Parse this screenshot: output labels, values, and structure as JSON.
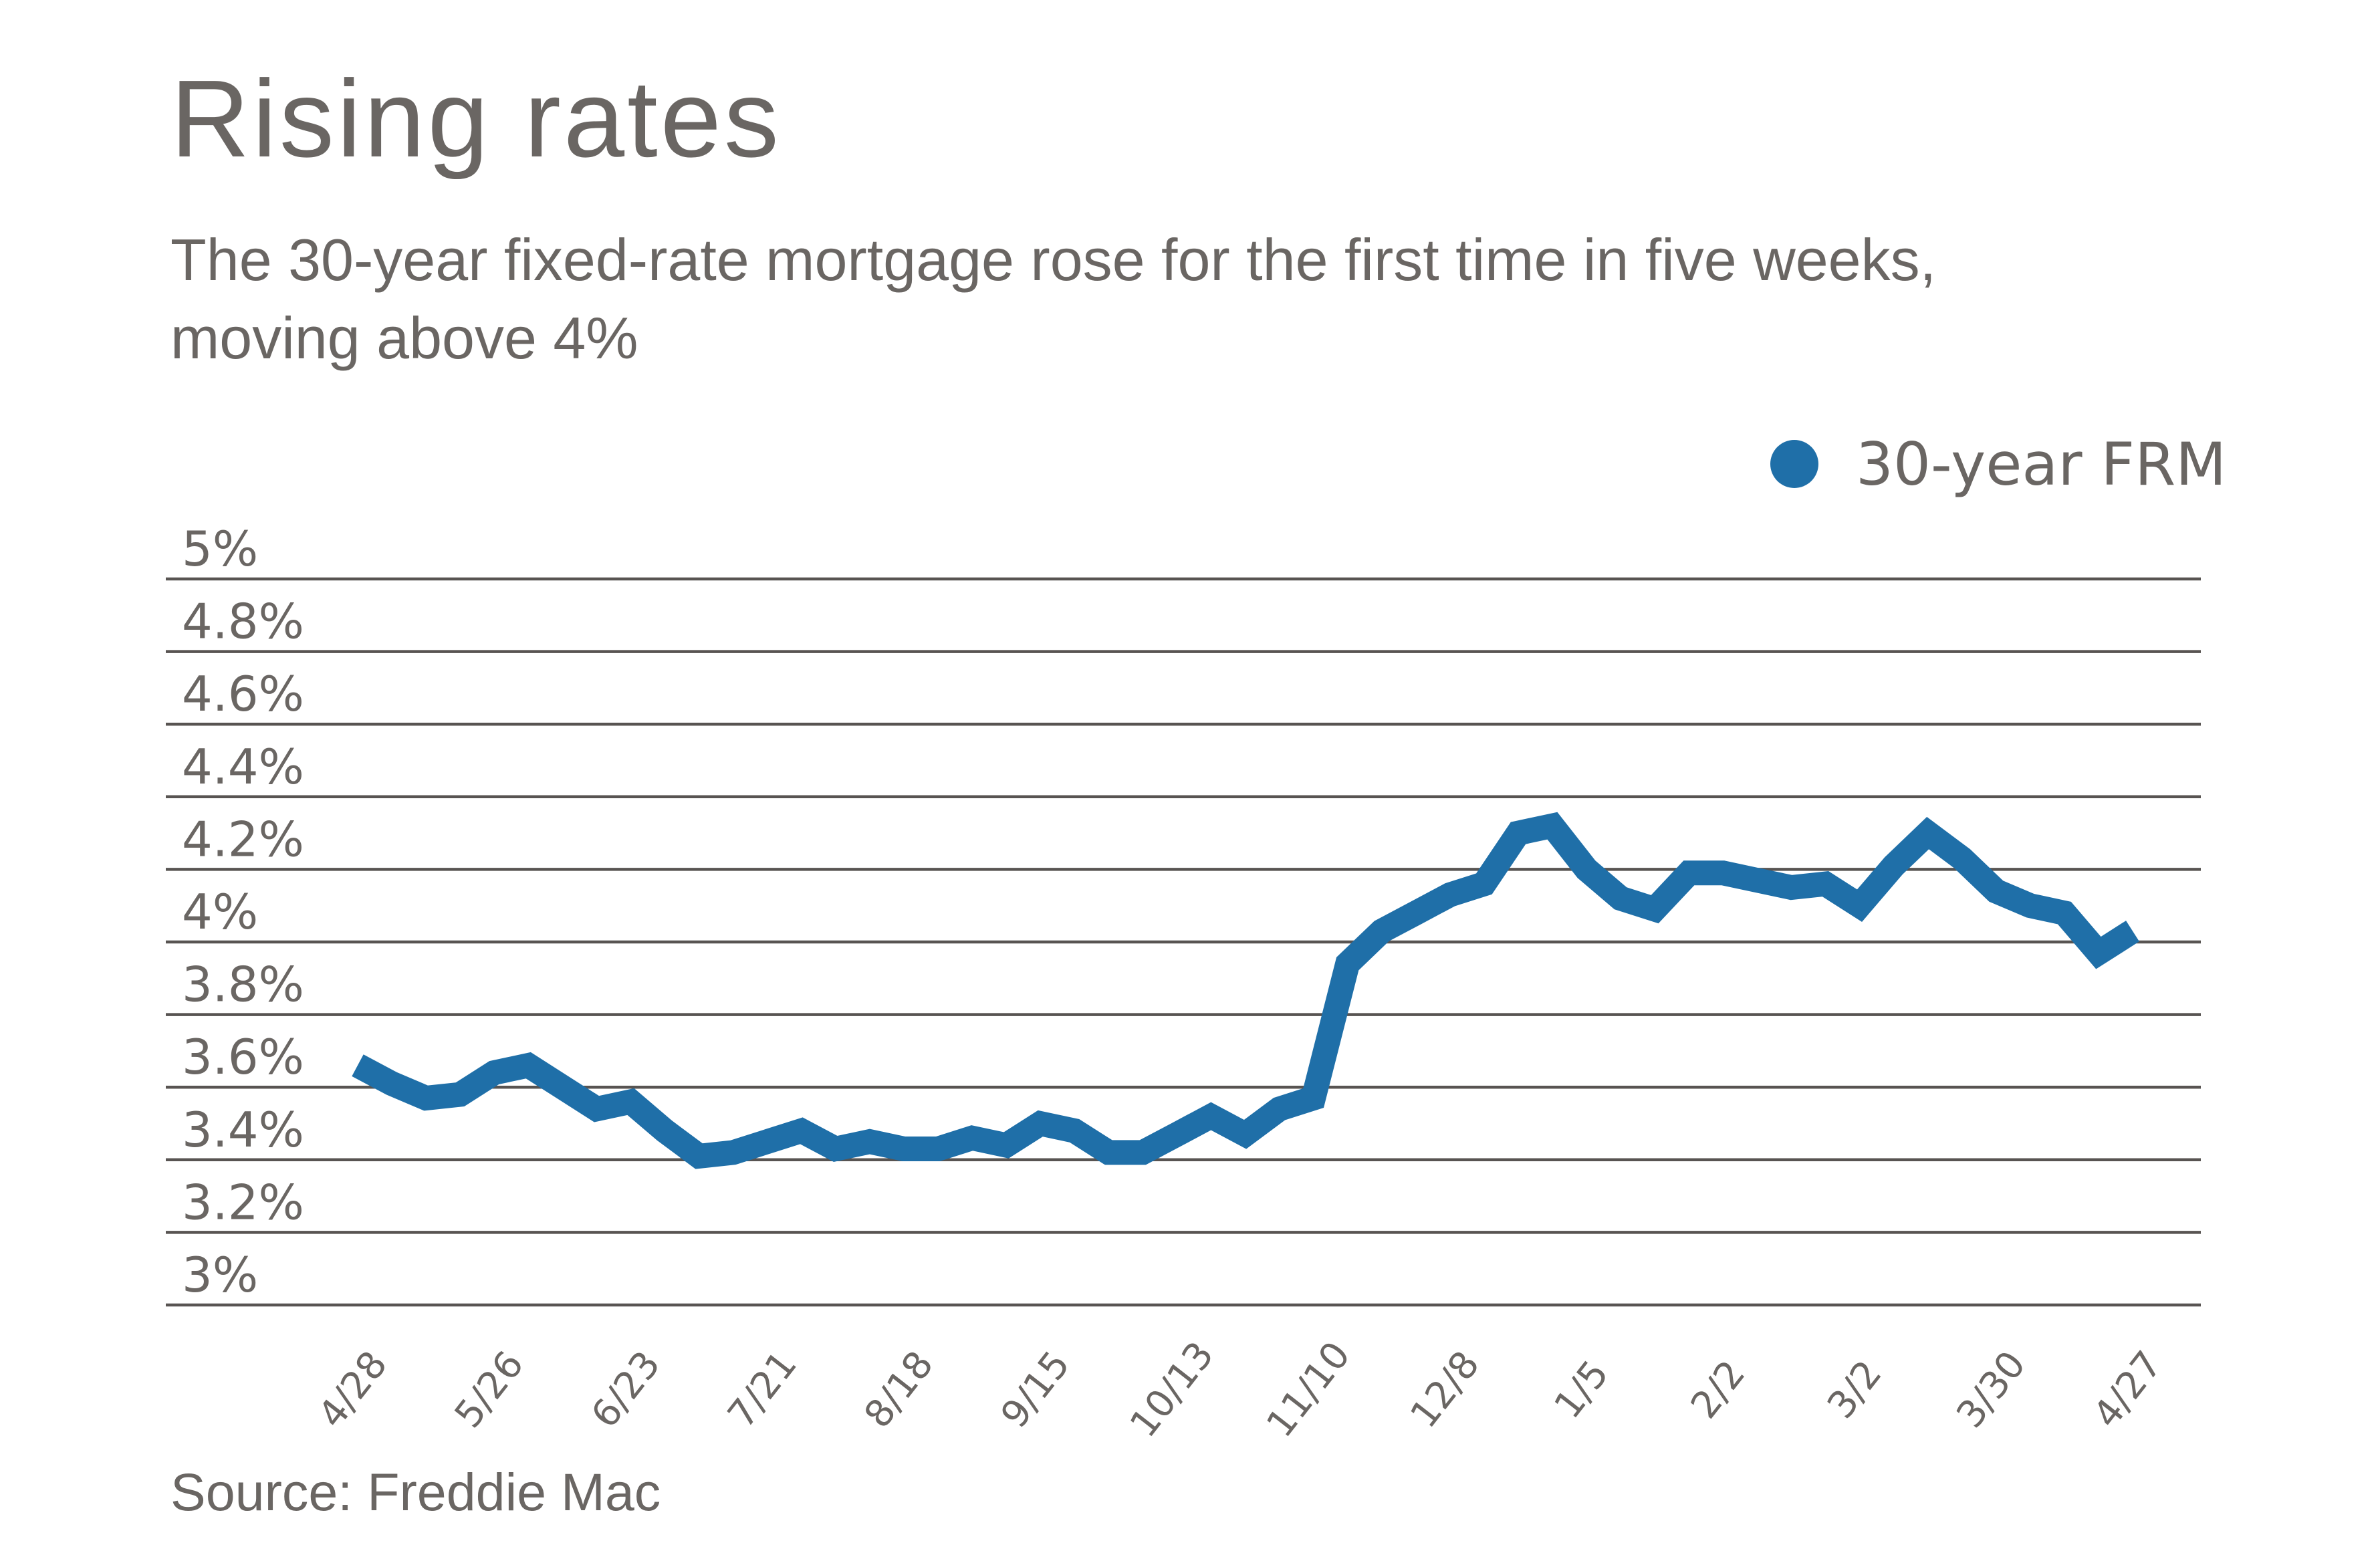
{
  "page": {
    "title": "Rising rates",
    "subtitle": "The 30-year fixed-rate mortgage rose for the first time in five weeks, moving above 4%",
    "source": "Source: Freddie Mac"
  },
  "legend": {
    "label": "30-year FRM",
    "marker_color": "#1f6fa8"
  },
  "colors": {
    "line": "#1f6fa8",
    "grid": "#585452",
    "text": "#6a6663",
    "background": "#ffffff"
  },
  "chart_data": {
    "type": "line",
    "title": "Rising rates",
    "xlabel": "",
    "ylabel": "",
    "ylim": [
      3.0,
      5.0
    ],
    "grid": true,
    "legend_position": "top-right",
    "ytick_values": [
      5.0,
      4.8,
      4.6,
      4.4,
      4.2,
      4.0,
      3.8,
      3.6,
      3.4,
      3.2,
      3.0
    ],
    "ytick_labels": [
      "5%",
      "4.8%",
      "4.6%",
      "4.4%",
      "4.2%",
      "4%",
      "3.8%",
      "3.6%",
      "3.4%",
      "3.2%",
      "3%"
    ],
    "x_tick_labels": [
      "4/28",
      "5/26",
      "6/23",
      "7/21",
      "8/18",
      "9/15",
      "10/13",
      "11/10",
      "12/8",
      "1/5",
      "2/2",
      "3/2",
      "3/30",
      "4/27"
    ],
    "x": [
      "4/28",
      "5/5",
      "5/12",
      "5/19",
      "5/26",
      "6/2",
      "6/9",
      "6/16",
      "6/23",
      "6/30",
      "7/7",
      "7/14",
      "7/21",
      "7/28",
      "8/4",
      "8/11",
      "8/18",
      "8/25",
      "9/1",
      "9/8",
      "9/15",
      "9/22",
      "9/29",
      "10/6",
      "10/13",
      "10/20",
      "10/27",
      "11/3",
      "11/10",
      "11/17",
      "11/23",
      "12/1",
      "12/8",
      "12/15",
      "12/22",
      "12/29",
      "1/5",
      "1/12",
      "1/19",
      "1/26",
      "2/2",
      "2/9",
      "2/16",
      "2/23",
      "3/2",
      "3/9",
      "3/16",
      "3/23",
      "3/30",
      "4/6",
      "4/13",
      "4/20",
      "4/27"
    ],
    "series": [
      {
        "name": "30-year FRM",
        "color": "#1f6fa8",
        "values": [
          3.66,
          3.61,
          3.57,
          3.58,
          3.64,
          3.66,
          3.6,
          3.54,
          3.56,
          3.48,
          3.41,
          3.42,
          3.45,
          3.48,
          3.43,
          3.45,
          3.43,
          3.43,
          3.46,
          3.44,
          3.5,
          3.48,
          3.42,
          3.42,
          3.47,
          3.52,
          3.47,
          3.54,
          3.57,
          3.94,
          4.03,
          4.08,
          4.13,
          4.16,
          4.3,
          4.32,
          4.2,
          4.12,
          4.09,
          4.19,
          4.19,
          4.17,
          4.15,
          4.16,
          4.1,
          4.21,
          4.3,
          4.23,
          4.14,
          4.1,
          4.08,
          3.97,
          4.03
        ]
      }
    ]
  }
}
